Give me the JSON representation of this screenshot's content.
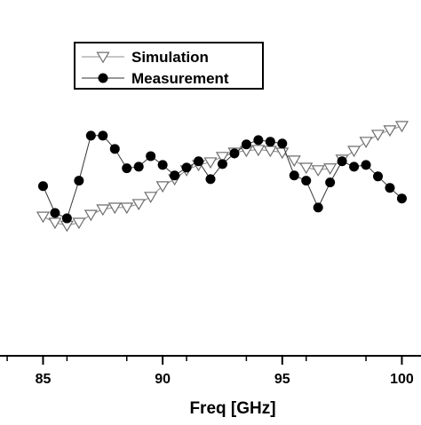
{
  "chart_data": {
    "type": "line",
    "title": "",
    "xlabel": "Freq [GHz]",
    "ylabel": "",
    "xlim": [
      83.2,
      100.8
    ],
    "ylim": [
      0,
      100
    ],
    "x_ticks": [
      85,
      90,
      95,
      100
    ],
    "x_tick_labels": [
      "85",
      "90",
      "95",
      "100"
    ],
    "legend_position": "top-left",
    "series": [
      {
        "name": "Simulation",
        "marker": "open-triangle-down",
        "color": "#9a9a9a",
        "x": [
          85,
          85.5,
          86,
          86.5,
          87,
          87.5,
          88,
          88.5,
          89,
          89.5,
          90,
          90.5,
          91,
          91.5,
          92,
          92.5,
          93,
          93.5,
          94,
          94.5,
          95,
          95.5,
          96,
          96.5,
          97,
          97.5,
          98,
          98.5,
          99,
          99.5,
          100
        ],
        "y": [
          43.3,
          40.6,
          39.3,
          40.6,
          44.1,
          46.5,
          47.3,
          47.3,
          48.9,
          52.1,
          56.8,
          59.9,
          63.9,
          66.2,
          67.4,
          69.8,
          71.7,
          72.5,
          72.9,
          72.5,
          71.7,
          68.2,
          65.0,
          63.9,
          64.7,
          68.6,
          72.5,
          76.5,
          79.6,
          81.6,
          83.5
        ]
      },
      {
        "name": "Measurement",
        "marker": "filled-circle",
        "color": "#000000",
        "x": [
          85,
          85.5,
          86,
          86.5,
          87,
          87.5,
          88,
          88.5,
          89,
          89.5,
          90,
          90.5,
          91,
          91.5,
          92,
          92.5,
          93,
          93.5,
          94,
          94.5,
          95,
          95.5,
          96,
          96.5,
          97,
          97.5,
          98,
          98.5,
          99,
          99.5,
          100
        ],
        "y": [
          56.8,
          44.9,
          42.5,
          59.2,
          79.2,
          79.2,
          73.3,
          64.7,
          65.4,
          70.1,
          66.2,
          61.5,
          65.0,
          67.8,
          59.9,
          66.6,
          71.3,
          75.3,
          77.2,
          76.5,
          75.7,
          61.5,
          59.2,
          47.3,
          58.4,
          67.8,
          65.4,
          66.2,
          61.1,
          56.0,
          51.3
        ]
      }
    ]
  }
}
